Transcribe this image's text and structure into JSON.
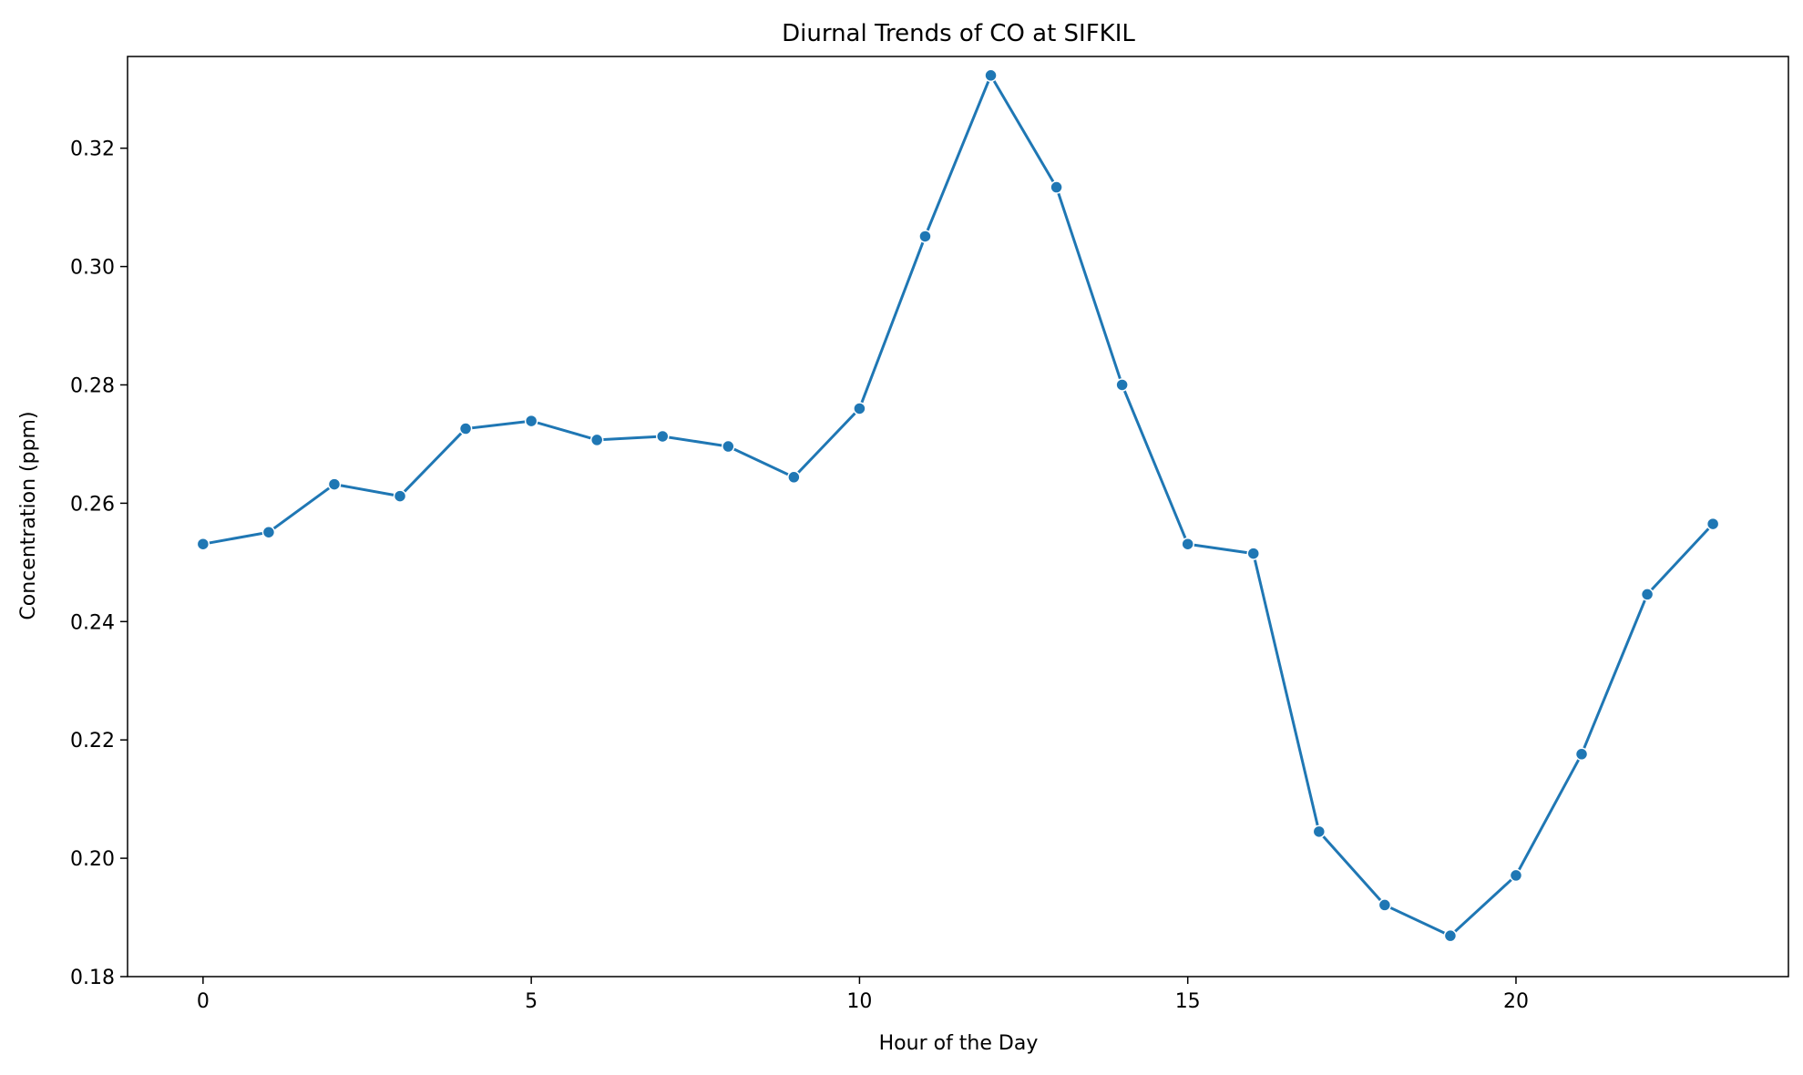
{
  "chart_data": {
    "type": "line",
    "title": "Diurnal Trends of CO at SIFKIL",
    "xlabel": "Hour of the Day",
    "ylabel": "Concentration (ppm)",
    "xlim": [
      -1.15,
      24.15
    ],
    "ylim": [
      0.18,
      0.3355
    ],
    "xticks": [
      0,
      5,
      10,
      15,
      20
    ],
    "xtick_labels": [
      "0",
      "5",
      "10",
      "15",
      "20"
    ],
    "yticks": [
      0.18,
      0.2,
      0.22,
      0.24,
      0.26,
      0.28,
      0.3,
      0.32
    ],
    "ytick_labels": [
      "0.18",
      "0.20",
      "0.22",
      "0.24",
      "0.26",
      "0.28",
      "0.30",
      "0.32"
    ],
    "grid": false,
    "marker": "circle",
    "line_color": "#1f77b4",
    "series": [
      {
        "x": [
          0,
          1,
          2,
          3,
          4,
          5,
          6,
          7,
          8,
          9,
          10,
          11,
          12,
          13,
          14,
          15,
          16,
          17,
          18,
          19,
          20,
          21,
          22,
          23
        ],
        "values": [
          0.2531,
          0.2551,
          0.2632,
          0.2612,
          0.2726,
          0.2739,
          0.2707,
          0.2713,
          0.2696,
          0.2644,
          0.276,
          0.3051,
          0.3323,
          0.3134,
          0.28,
          0.2531,
          0.2515,
          0.2045,
          0.1921,
          0.1869,
          0.1971,
          0.2176,
          0.2446,
          0.2565
        ]
      }
    ]
  }
}
